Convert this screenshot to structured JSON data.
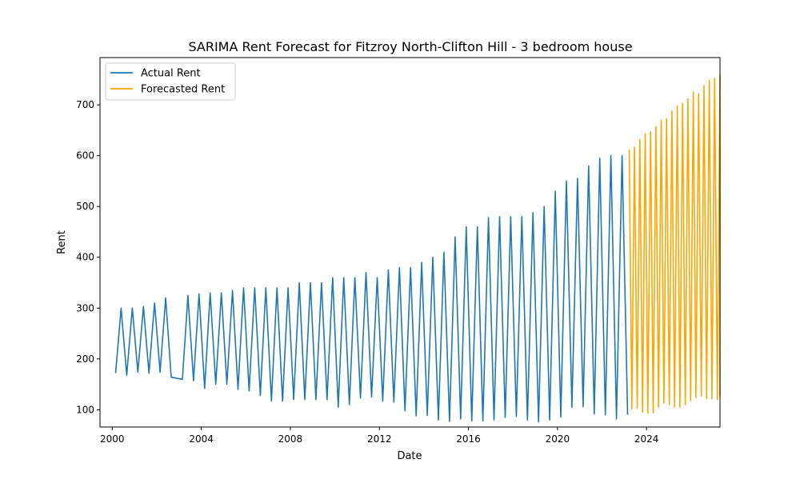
{
  "chart_data": {
    "type": "line",
    "title": "SARIMA Rent Forecast for Fitzroy North-Clifton Hill - 3 bedroom house",
    "xlabel": "Date",
    "ylabel": "Rent",
    "xlim": [
      1999.45,
      2027.3
    ],
    "ylim": [
      66,
      793
    ],
    "x_ticks": [
      2000,
      2004,
      2008,
      2012,
      2016,
      2020,
      2024
    ],
    "x_tick_labels": [
      "2000",
      "2004",
      "2008",
      "2012",
      "2016",
      "2020",
      "2024"
    ],
    "y_ticks": [
      100,
      200,
      300,
      400,
      500,
      600,
      700
    ],
    "y_tick_labels": [
      "100",
      "200",
      "300",
      "400",
      "500",
      "600",
      "700"
    ],
    "grid": false,
    "legend_position": "top-left",
    "series": [
      {
        "name": "Actual Rent",
        "color": "#1f77b4",
        "points": [
          [
            2000.15,
            172
          ],
          [
            2000.4,
            300
          ],
          [
            2000.65,
            168
          ],
          [
            2000.9,
            300
          ],
          [
            2001.15,
            174
          ],
          [
            2001.4,
            303
          ],
          [
            2001.65,
            172
          ],
          [
            2001.9,
            310
          ],
          [
            2002.15,
            174
          ],
          [
            2002.4,
            320
          ],
          [
            2002.65,
            164
          ],
          [
            2003.15,
            160
          ],
          [
            2003.4,
            325
          ],
          [
            2003.65,
            157
          ],
          [
            2003.9,
            328
          ],
          [
            2004.15,
            142
          ],
          [
            2004.4,
            330
          ],
          [
            2004.65,
            150
          ],
          [
            2004.9,
            330
          ],
          [
            2005.15,
            150
          ],
          [
            2005.4,
            335
          ],
          [
            2005.65,
            140
          ],
          [
            2005.9,
            340
          ],
          [
            2006.15,
            137
          ],
          [
            2006.4,
            340
          ],
          [
            2006.65,
            128
          ],
          [
            2006.9,
            340
          ],
          [
            2007.15,
            117
          ],
          [
            2007.4,
            340
          ],
          [
            2007.65,
            117
          ],
          [
            2007.9,
            340
          ],
          [
            2008.15,
            120
          ],
          [
            2008.4,
            350
          ],
          [
            2008.65,
            120
          ],
          [
            2008.9,
            350
          ],
          [
            2009.15,
            120
          ],
          [
            2009.4,
            350
          ],
          [
            2009.65,
            120
          ],
          [
            2009.9,
            360
          ],
          [
            2010.15,
            105
          ],
          [
            2010.4,
            360
          ],
          [
            2010.65,
            110
          ],
          [
            2010.9,
            360
          ],
          [
            2011.15,
            123
          ],
          [
            2011.4,
            370
          ],
          [
            2011.65,
            125
          ],
          [
            2011.9,
            360
          ],
          [
            2012.15,
            117
          ],
          [
            2012.4,
            375
          ],
          [
            2012.65,
            115
          ],
          [
            2012.9,
            380
          ],
          [
            2013.15,
            98
          ],
          [
            2013.4,
            380
          ],
          [
            2013.65,
            88
          ],
          [
            2013.9,
            390
          ],
          [
            2014.15,
            89
          ],
          [
            2014.4,
            400
          ],
          [
            2014.65,
            80
          ],
          [
            2014.9,
            410
          ],
          [
            2015.15,
            77
          ],
          [
            2015.4,
            440
          ],
          [
            2015.65,
            82
          ],
          [
            2015.9,
            460
          ],
          [
            2016.15,
            78
          ],
          [
            2016.4,
            460
          ],
          [
            2016.65,
            78
          ],
          [
            2016.9,
            478
          ],
          [
            2017.15,
            80
          ],
          [
            2017.4,
            480
          ],
          [
            2017.65,
            85
          ],
          [
            2017.9,
            480
          ],
          [
            2018.15,
            87
          ],
          [
            2018.4,
            480
          ],
          [
            2018.65,
            80
          ],
          [
            2018.9,
            488
          ],
          [
            2019.15,
            76
          ],
          [
            2019.4,
            500
          ],
          [
            2019.65,
            80
          ],
          [
            2019.9,
            530
          ],
          [
            2020.15,
            86
          ],
          [
            2020.4,
            550
          ],
          [
            2020.65,
            105
          ],
          [
            2020.9,
            555
          ],
          [
            2021.15,
            106
          ],
          [
            2021.4,
            580
          ],
          [
            2021.65,
            92
          ],
          [
            2021.9,
            595
          ],
          [
            2022.15,
            90
          ],
          [
            2022.4,
            600
          ],
          [
            2022.65,
            82
          ],
          [
            2022.9,
            600
          ],
          [
            2023.15,
            90
          ]
        ]
      },
      {
        "name": "Forecasted Rent",
        "color": "#ffa500",
        "points": [
          [
            2023.22,
            612
          ],
          [
            2023.34,
            102
          ],
          [
            2023.46,
            617
          ],
          [
            2023.58,
            103
          ],
          [
            2023.7,
            632
          ],
          [
            2023.82,
            95
          ],
          [
            2023.94,
            643
          ],
          [
            2024.06,
            93
          ],
          [
            2024.18,
            647
          ],
          [
            2024.3,
            94
          ],
          [
            2024.42,
            657
          ],
          [
            2024.54,
            105
          ],
          [
            2024.66,
            670
          ],
          [
            2024.78,
            113
          ],
          [
            2024.9,
            673
          ],
          [
            2025.02,
            110
          ],
          [
            2025.14,
            688
          ],
          [
            2025.26,
            105
          ],
          [
            2025.38,
            698
          ],
          [
            2025.5,
            105
          ],
          [
            2025.62,
            703
          ],
          [
            2025.74,
            110
          ],
          [
            2025.86,
            712
          ],
          [
            2025.98,
            118
          ],
          [
            2026.1,
            725
          ],
          [
            2026.22,
            124
          ],
          [
            2026.34,
            722
          ],
          [
            2026.46,
            127
          ],
          [
            2026.58,
            738
          ],
          [
            2026.7,
            122
          ],
          [
            2026.82,
            748
          ],
          [
            2026.94,
            122
          ],
          [
            2027.06,
            752
          ],
          [
            2027.18,
            120
          ],
          [
            2027.3,
            760
          ],
          [
            2027.3,
            128
          ]
        ]
      }
    ]
  }
}
